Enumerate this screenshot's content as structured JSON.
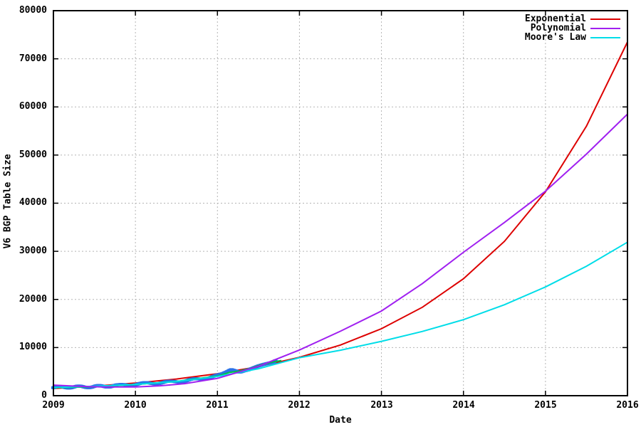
{
  "chart_data": {
    "type": "line",
    "title": "",
    "xlabel": "Date",
    "ylabel": "V6 BGP Table Size",
    "xlim": [
      2009,
      2016
    ],
    "ylim": [
      0,
      80000
    ],
    "grid": true,
    "xticks": [
      "2009",
      "2010",
      "2011",
      "2012",
      "2013",
      "2014",
      "2015",
      "2016"
    ],
    "yticks": [
      "0",
      "10000",
      "20000",
      "30000",
      "40000",
      "50000",
      "60000",
      "70000",
      "80000"
    ],
    "colors": {
      "grid": "#b5b5b5",
      "border": "#000000",
      "exponential": "#dd0000",
      "polynomial": "#a020f0",
      "moores_law": "#00dde8",
      "data_points": "#2a72e8",
      "data_smooth": "#00c040"
    },
    "legend": {
      "position": "top-right",
      "entries": [
        {
          "label": "Exponential",
          "color": "#dd0000"
        },
        {
          "label": "Polynomial",
          "color": "#a020f0"
        },
        {
          "label": "Moore's Law",
          "color": "#00dde8"
        }
      ]
    },
    "series": [
      {
        "name": "Exponential fit",
        "type": "line",
        "color": "#dd0000",
        "points": [
          [
            2009,
            1500
          ],
          [
            2009.5,
            1980
          ],
          [
            2010,
            2620
          ],
          [
            2010.5,
            3460
          ],
          [
            2011,
            4570
          ],
          [
            2011.5,
            6040
          ],
          [
            2012,
            7970
          ],
          [
            2012.5,
            10530
          ],
          [
            2013,
            13920
          ],
          [
            2013.5,
            18380
          ],
          [
            2014,
            24290
          ],
          [
            2014.5,
            32080
          ],
          [
            2015,
            42380
          ],
          [
            2015.5,
            56000
          ],
          [
            2016,
            73500
          ]
        ]
      },
      {
        "name": "BGP measured data (unlabeled)",
        "type": "scatter",
        "color": "#2a72e8",
        "points": [
          [
            2009.0,
            1700
          ],
          [
            2009.08,
            1730
          ],
          [
            2009.16,
            1780
          ],
          [
            2009.24,
            1800
          ],
          [
            2009.32,
            1810
          ],
          [
            2009.4,
            1850
          ],
          [
            2009.48,
            1880
          ],
          [
            2009.56,
            1920
          ],
          [
            2009.64,
            1960
          ],
          [
            2009.72,
            2020
          ],
          [
            2009.8,
            2100
          ],
          [
            2009.9,
            2250
          ],
          [
            2010.0,
            2400
          ],
          [
            2010.1,
            2500
          ],
          [
            2010.2,
            2600
          ],
          [
            2010.3,
            2700
          ],
          [
            2010.4,
            2800
          ],
          [
            2010.5,
            2950
          ],
          [
            2010.6,
            3100
          ],
          [
            2010.7,
            3280
          ],
          [
            2010.8,
            3500
          ],
          [
            2010.9,
            3780
          ],
          [
            2011.0,
            4100
          ],
          [
            2011.06,
            4350
          ],
          [
            2011.12,
            4800
          ],
          [
            2011.17,
            5300
          ],
          [
            2011.22,
            5250
          ],
          [
            2011.27,
            5100
          ],
          [
            2011.32,
            5250
          ],
          [
            2011.38,
            5500
          ],
          [
            2011.44,
            5900
          ],
          [
            2011.5,
            6300
          ],
          [
            2011.56,
            6600
          ],
          [
            2011.62,
            6850
          ],
          [
            2011.68,
            7050
          ],
          [
            2011.72,
            7150
          ]
        ]
      },
      {
        "name": "Data smoothing (unlabeled)",
        "type": "line",
        "color": "#00c040",
        "points": [
          [
            2009,
            1650
          ],
          [
            2009.5,
            1870
          ],
          [
            2010,
            2320
          ],
          [
            2010.5,
            2960
          ],
          [
            2011,
            4080
          ],
          [
            2011.15,
            4850
          ],
          [
            2011.25,
            5050
          ],
          [
            2011.4,
            5650
          ],
          [
            2011.55,
            6500
          ],
          [
            2011.7,
            7100
          ],
          [
            2011.78,
            7300
          ]
        ]
      },
      {
        "name": "Moore's Law fit",
        "type": "line",
        "color": "#00dde8",
        "points": [
          [
            2009,
            1700
          ],
          [
            2009.5,
            1950
          ],
          [
            2010,
            2350
          ],
          [
            2010.5,
            2950
          ],
          [
            2011,
            4000
          ],
          [
            2011.5,
            5600
          ],
          [
            2012,
            7900
          ],
          [
            2012.5,
            9450
          ],
          [
            2013,
            11300
          ],
          [
            2013.5,
            13350
          ],
          [
            2014,
            15800
          ],
          [
            2014.5,
            18900
          ],
          [
            2015,
            22600
          ],
          [
            2015.5,
            26900
          ],
          [
            2016,
            31900
          ]
        ]
      },
      {
        "name": "Polynomial fit",
        "type": "line",
        "color": "#a020f0",
        "points": [
          [
            2009,
            2200
          ],
          [
            2009.3,
            1950
          ],
          [
            2009.6,
            1800
          ],
          [
            2010,
            1800
          ],
          [
            2010.3,
            2050
          ],
          [
            2010.6,
            2500
          ],
          [
            2011,
            3600
          ],
          [
            2011.5,
            6100
          ],
          [
            2012,
            9500
          ],
          [
            2012.5,
            13400
          ],
          [
            2013,
            17600
          ],
          [
            2013.5,
            23300
          ],
          [
            2014,
            29800
          ],
          [
            2014.5,
            36000
          ],
          [
            2015,
            42500
          ],
          [
            2015.5,
            50200
          ],
          [
            2016,
            58500
          ]
        ]
      }
    ]
  }
}
